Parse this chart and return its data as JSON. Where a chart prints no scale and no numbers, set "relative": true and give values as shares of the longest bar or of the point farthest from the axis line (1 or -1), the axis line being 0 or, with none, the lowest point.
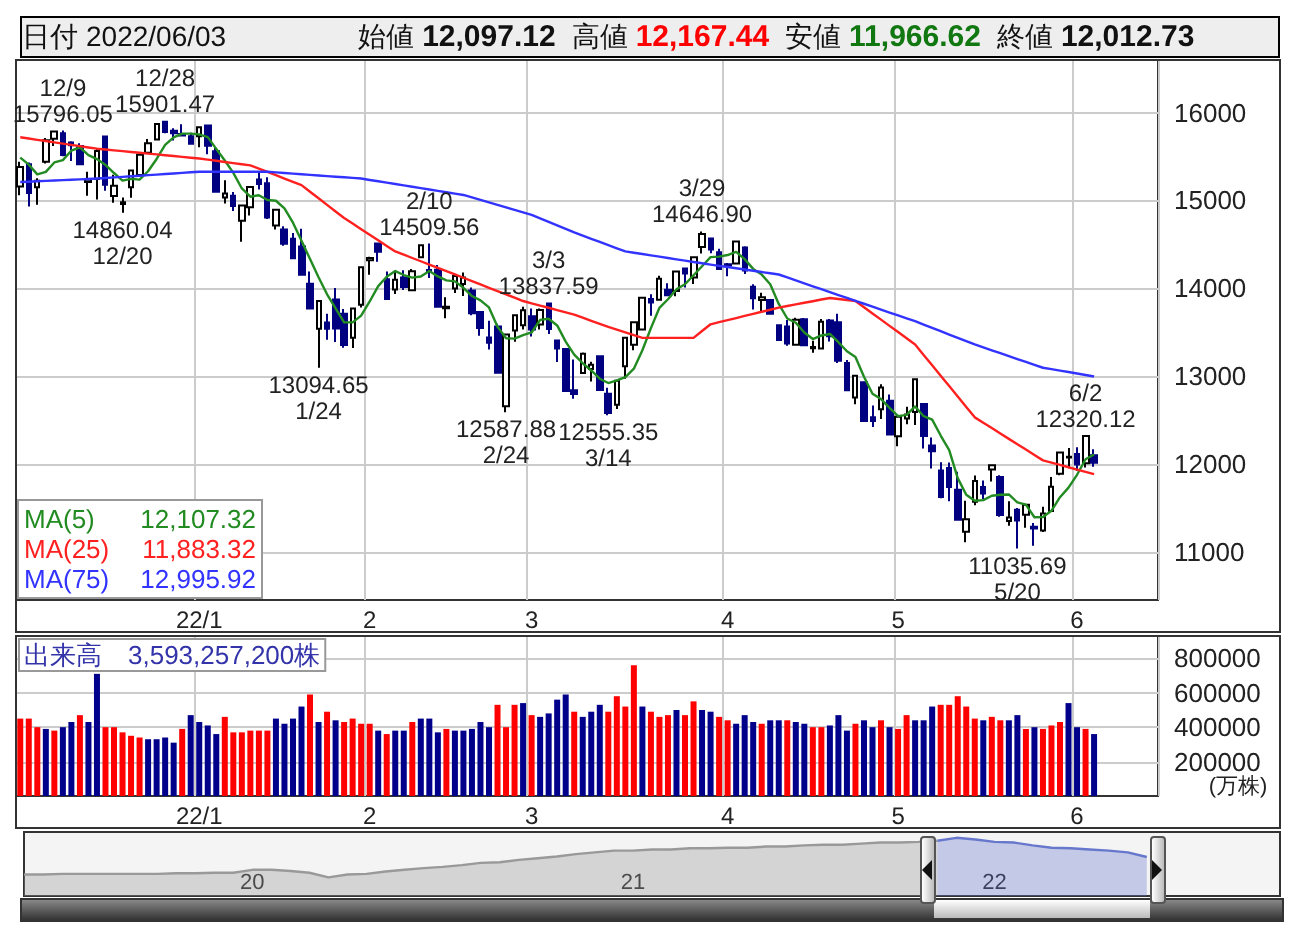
{
  "chart_data": [
    {
      "type": "candlestick",
      "annotations": [
        "日付 2022/06/03",
        "始値 12,097.12",
        "高値 12,167.44",
        "安値 11,966.62",
        "終値 12,012.73",
        "12,107.32",
        "11,883.32",
        "12,995.92"
      ],
      "categories": [
        null,
        null,
        null,
        null,
        null,
        null,
        null,
        null,
        null,
        null,
        null,
        null,
        null,
        null,
        null,
        null,
        null,
        null,
        null,
        null,
        null,
        "22/1",
        null,
        null,
        null,
        null,
        null,
        null,
        null,
        null,
        null,
        null,
        null,
        null,
        null,
        null,
        null,
        null,
        null,
        null,
        null,
        "2",
        null,
        null,
        null,
        null,
        null,
        null,
        null,
        null,
        null,
        null,
        null,
        null,
        null,
        null,
        null,
        null,
        null,
        null,
        "3",
        null,
        null,
        null,
        null,
        null,
        null,
        null,
        null,
        null,
        null,
        null,
        null,
        null,
        null,
        null,
        null,
        null,
        null,
        null,
        null,
        null,
        null,
        "4",
        null,
        null,
        null,
        null,
        null,
        null,
        null,
        null,
        null,
        null,
        null,
        null,
        null,
        null,
        null,
        null,
        null,
        null,
        null,
        "5",
        null,
        null,
        null,
        null,
        null,
        null,
        null,
        null,
        null,
        null,
        null,
        null,
        null,
        null,
        null,
        null,
        null,
        null,
        null,
        null,
        "6",
        null,
        null
      ],
      "ohlc": [
        [
          15160,
          15440,
          15060,
          15381
        ],
        [
          15412,
          15432,
          14932,
          15085
        ],
        [
          15150,
          15252,
          14952,
          15225
        ],
        [
          15440,
          15711,
          15420,
          15686
        ],
        [
          15704,
          15793,
          15620,
          15786
        ],
        [
          15765,
          15796.05,
          15505,
          15517
        ],
        [
          15660,
          15674,
          15450,
          15630
        ],
        [
          15620,
          15652,
          15400,
          15413
        ],
        [
          15210,
          15327,
          15055,
          15237
        ],
        [
          15245,
          15592,
          15010,
          15565
        ],
        [
          15730,
          15730,
          15110,
          15180
        ],
        [
          15050,
          15294,
          14974,
          15169
        ],
        [
          14960,
          15035,
          14860.04,
          14981
        ],
        [
          15150,
          15341,
          15031,
          15341
        ],
        [
          15290,
          15523,
          15286,
          15521
        ],
        [
          15545,
          15700,
          15540,
          15653
        ],
        [
          15696,
          15871,
          15696,
          15871
        ],
        [
          15896,
          15901.47,
          15766,
          15781
        ],
        [
          15794,
          15822,
          15683,
          15766
        ],
        [
          15758,
          15868,
          15738,
          15741
        ],
        [
          15733,
          15771,
          15643,
          15645
        ],
        [
          15732,
          15833,
          15606,
          15833
        ],
        [
          15853,
          15853,
          15528,
          15623
        ],
        [
          15562,
          15607,
          15100,
          15100
        ],
        [
          15033,
          15230,
          14967,
          15081
        ],
        [
          15055,
          15096,
          14881,
          14936
        ],
        [
          14769,
          14943,
          14530,
          14943
        ],
        [
          14924,
          15154,
          14830,
          15153
        ],
        [
          15240,
          15319,
          15125,
          15188
        ],
        [
          15197,
          15264,
          14790,
          14806
        ],
        [
          14714,
          14897,
          14670,
          14894
        ],
        [
          14670,
          14707,
          14484,
          14507
        ],
        [
          14564,
          14629,
          14334,
          14341
        ],
        [
          14476,
          14677,
          14142,
          14155
        ],
        [
          14052,
          14190,
          13768,
          13769
        ],
        [
          13540,
          13862,
          13094.65,
          13856
        ],
        [
          13610,
          13711,
          13414,
          13540
        ],
        [
          13871,
          14002,
          13388,
          13542
        ],
        [
          13710,
          13765,
          13322,
          13353
        ],
        [
          13436,
          13771,
          13319,
          13771
        ],
        [
          13812,
          14242,
          13781,
          14240
        ],
        [
          14320,
          14358,
          14155,
          14346
        ],
        [
          14511,
          14511,
          14303,
          14417
        ],
        [
          14103,
          14192,
          13866,
          13879
        ],
        [
          13986,
          14202,
          13935,
          14098
        ],
        [
          14124,
          14205,
          13980,
          14015
        ],
        [
          13977,
          14221,
          13966,
          14194
        ],
        [
          14354,
          14495,
          14350,
          14490
        ],
        [
          14209,
          14509.56,
          14116,
          14186
        ],
        [
          14211,
          14265,
          13780,
          13791
        ],
        [
          13774,
          13897,
          13659,
          13790
        ],
        [
          13998,
          14140,
          13945,
          14139
        ],
        [
          14049,
          14181,
          13913,
          14124
        ],
        [
          13976,
          14009,
          13694,
          13716
        ],
        [
          13731,
          13741,
          13460,
          13548
        ],
        [
          13441,
          13629,
          13304,
          13381
        ],
        [
          13564,
          13597,
          13030,
          13037
        ],
        [
          12656,
          13483,
          12587.88,
          13473
        ],
        [
          13520,
          13694,
          13391,
          13694
        ],
        [
          13580,
          13790,
          13532,
          13751
        ],
        [
          13681,
          13770,
          13450,
          13532
        ],
        [
          13587,
          13770,
          13532,
          13752
        ],
        [
          13828,
          13837.59,
          13480,
          13537
        ],
        [
          13406,
          13413,
          13160,
          13313
        ],
        [
          13310,
          13319,
          12830,
          12830
        ],
        [
          12838,
          13190,
          12742,
          12795
        ],
        [
          13036,
          13268,
          13026,
          13255
        ],
        [
          13082,
          13164,
          12938,
          13129
        ],
        [
          13225,
          13227,
          12836,
          12843
        ],
        [
          12800,
          12867,
          12555.35,
          12581
        ],
        [
          12673,
          12948,
          12626,
          12948
        ],
        [
          13111,
          13440,
          12970,
          13436
        ],
        [
          13356,
          13614,
          13294,
          13614
        ],
        [
          13532,
          13904,
          13522,
          13893
        ],
        [
          13878,
          13932,
          13686,
          13838
        ],
        [
          13870,
          14143,
          13866,
          14108
        ],
        [
          13984,
          14057,
          13916,
          13922
        ],
        [
          13970,
          14191,
          13908,
          14191
        ],
        [
          14225,
          14233,
          14009,
          14169
        ],
        [
          14122,
          14356,
          14048,
          14354
        ],
        [
          14470,
          14646.9,
          14395,
          14619
        ],
        [
          14566,
          14579,
          14400,
          14442
        ],
        [
          14410,
          14451,
          14214,
          14220
        ],
        [
          14273,
          14288,
          14137,
          14261
        ],
        [
          14283,
          14537,
          14270,
          14532
        ],
        [
          14465,
          14480,
          14163,
          14204
        ],
        [
          14017,
          14045,
          13759,
          13888
        ],
        [
          13867,
          13948,
          13723,
          13897
        ],
        [
          13866,
          13879,
          13704,
          13711
        ],
        [
          13580,
          13581,
          13402,
          13411
        ],
        [
          13564,
          13640,
          13345,
          13371
        ],
        [
          13358,
          13665,
          13353,
          13643
        ],
        [
          13647,
          13662,
          13348,
          13351
        ],
        [
          13316,
          13403,
          13265,
          13332
        ],
        [
          13315,
          13650,
          13304,
          13619
        ],
        [
          13634,
          13650,
          13393,
          13453
        ],
        [
          13612,
          13710,
          13150,
          13174
        ],
        [
          13148,
          13183,
          12839,
          12839
        ],
        [
          12756,
          13005,
          12679,
          13004
        ],
        [
          12929,
          12935,
          12490,
          12490
        ],
        [
          12531,
          12665,
          12420,
          12488
        ],
        [
          12622,
          12908,
          12510,
          12871
        ],
        [
          12720,
          12791,
          12333,
          12335
        ],
        [
          12315,
          12541,
          12202,
          12536
        ],
        [
          12517,
          12650,
          12451,
          12563
        ],
        [
          12592,
          12964,
          12444,
          12964
        ],
        [
          12681,
          12685,
          12176,
          12318
        ],
        [
          12210,
          12300,
          11948,
          12145
        ],
        [
          11924,
          12018,
          11608,
          11623
        ],
        [
          11952,
          12016,
          11574,
          11738
        ],
        [
          11705,
          11911,
          11363,
          11364
        ],
        [
          11226,
          11579,
          11108,
          11371
        ],
        [
          11569,
          11867,
          11530,
          11805
        ],
        [
          11736,
          11810,
          11597,
          11662
        ],
        [
          11936,
          11985,
          11800,
          11984
        ],
        [
          11851,
          11871,
          11397,
          11418
        ],
        [
          11349,
          11576,
          11297,
          11389
        ],
        [
          11477,
          11498,
          11035.69,
          11354
        ],
        [
          11420,
          11539,
          11273,
          11535
        ],
        [
          11285,
          11327,
          11068,
          11264
        ],
        [
          11242,
          11512,
          11225,
          11434
        ],
        [
          11464,
          11850,
          11456,
          11741
        ],
        [
          11888,
          12132,
          11871,
          12131
        ],
        [
          12072,
          12181,
          11950,
          12081
        ],
        [
          12113,
          12189,
          11919,
          11994
        ],
        [
          12007,
          12320.12,
          11960,
          12317
        ],
        [
          12097.12,
          12167.44,
          11966.62,
          12012.73
        ]
      ],
      "value_labels": [
        null,
        null,
        null,
        null,
        null,
        "12/9\n15796.05",
        null,
        null,
        null,
        null,
        null,
        null,
        "14860.04\n12/20",
        null,
        null,
        null,
        null,
        "12/28\n15901.47",
        null,
        null,
        null,
        null,
        null,
        null,
        null,
        null,
        null,
        null,
        null,
        null,
        null,
        null,
        null,
        null,
        null,
        "13094.65\n1/24",
        null,
        null,
        null,
        null,
        null,
        null,
        null,
        null,
        null,
        null,
        null,
        null,
        "2/10\n14509.56",
        null,
        null,
        null,
        null,
        null,
        null,
        null,
        null,
        "12587.88\n2/24",
        null,
        null,
        null,
        null,
        "3/3\n13837.59",
        null,
        null,
        null,
        null,
        null,
        null,
        "12555.35\n3/14",
        null,
        null,
        null,
        null,
        null,
        null,
        null,
        null,
        null,
        null,
        "3/29\n14646.90",
        null,
        null,
        null,
        null,
        null,
        null,
        null,
        null,
        null,
        null,
        null,
        null,
        null,
        null,
        null,
        null,
        null,
        null,
        null,
        null,
        null,
        null,
        null,
        null,
        null,
        null,
        null,
        null,
        null,
        null,
        null,
        null,
        null,
        null,
        null,
        null,
        "11035.69\n5/20",
        null,
        null,
        null,
        null,
        null,
        null,
        null,
        "6/2\n12320.12",
        null
      ],
      "ylim": [
        10450,
        16600
      ],
      "yticks": [
        11000,
        12000,
        13000,
        14000,
        15000,
        16000
      ],
      "grid": true,
      "legend": "bottom left",
      "marker": "none",
      "series": [
        {
          "name": "MA(5)",
          "type": "line",
          "color": "#228b22",
          "values": [
            15489,
            15408,
            15297,
            15326,
            15433,
            15460,
            15569,
            15606,
            15517,
            15472,
            15405,
            15313,
            15226,
            15247,
            15238,
            15333,
            15473,
            15633,
            15718,
            15762,
            15761,
            15753,
            15722,
            15588,
            15456,
            15315,
            15137,
            15043,
            15060,
            15005,
            14997,
            14910,
            14747,
            14541,
            14333,
            14126,
            13932,
            13772,
            13612,
            13612,
            13689,
            13850,
            14025,
            14131,
            14196,
            14151,
            14121,
            14135,
            14197,
            14135,
            14090,
            14079,
            14006,
            13912,
            13863,
            13782,
            13561,
            13431,
            13427,
            13467,
            13497,
            13640,
            13653,
            13577,
            13393,
            13245,
            13146,
            13064,
            12970,
            12921,
            12951,
            12987,
            13084,
            13294,
            13546,
            13778,
            13875,
            13990,
            14046,
            14149,
            14251,
            14355,
            14361,
            14379,
            14415,
            14332,
            14221,
            14156,
            14046,
            13822,
            13656,
            13607,
            13497,
            13422,
            13463,
            13480,
            13386,
            13283,
            13218,
            12992,
            12799,
            12738,
            12638,
            12544,
            12559,
            12654,
            12543,
            12505,
            12323,
            12158,
            11838,
            11648,
            11580,
            11588,
            11637,
            11648,
            11652,
            11561,
            11536,
            11392,
            11395,
            11466,
            11621,
            11730,
            11876,
            12053,
            12107.32
          ]
        },
        {
          "name": "MA(25)",
          "type": "line",
          "color": "#ff2020",
          "values": [
            15720,
            15706,
            15691,
            15677,
            15662,
            15648,
            15633,
            15619,
            15604,
            15590,
            15581,
            15571,
            15562,
            15553,
            15543,
            15534,
            15525,
            15515,
            15506,
            15497,
            15487,
            15478,
            15465,
            15452,
            15439,
            15426,
            15413,
            15400,
            15363,
            15325,
            15288,
            15250,
            15213,
            15175,
            15100,
            15025,
            14950,
            14875,
            14800,
            14737,
            14673,
            14610,
            14547,
            14483,
            14420,
            14383,
            14345,
            14308,
            14270,
            14233,
            14195,
            14158,
            14120,
            14082,
            14044,
            14006,
            13969,
            13931,
            13893,
            13855,
            13829,
            13803,
            13778,
            13752,
            13726,
            13700,
            13665,
            13630,
            13595,
            13560,
            13529,
            13498,
            13466,
            13435,
            13435,
            13435,
            13435,
            13435,
            13435,
            13435,
            13513,
            13590,
            13614,
            13638,
            13661,
            13685,
            13709,
            13733,
            13756,
            13780,
            13798,
            13817,
            13835,
            13853,
            13872,
            13890,
            13878,
            13867,
            13855,
            13784,
            13714,
            13643,
            13572,
            13502,
            13431,
            13360,
            13241,
            13123,
            13004,
            12886,
            12767,
            12649,
            12530,
            12469,
            12408,
            12346,
            12285,
            12224,
            12163,
            12101,
            12040,
            12014,
            11988,
            11962,
            11935,
            11909,
            11883.32
          ]
        },
        {
          "name": "MA(75)",
          "type": "line",
          "color": "#3333ff",
          "values": [
            15210,
            15214,
            15219,
            15223,
            15228,
            15232,
            15236,
            15241,
            15245,
            15250,
            15256,
            15263,
            15269,
            15276,
            15282,
            15289,
            15295,
            15301,
            15308,
            15314,
            15321,
            15327,
            15327,
            15327,
            15327,
            15327,
            15327,
            15327,
            15327,
            15327,
            15320,
            15313,
            15306,
            15299,
            15292,
            15285,
            15278,
            15271,
            15264,
            15257,
            15250,
            15234,
            15219,
            15203,
            15188,
            15172,
            15156,
            15141,
            15125,
            15110,
            15094,
            15078,
            15063,
            15035,
            15006,
            14978,
            14950,
            14921,
            14893,
            14864,
            14836,
            14796,
            14756,
            14716,
            14676,
            14636,
            14600,
            14564,
            14528,
            14492,
            14456,
            14420,
            14405,
            14390,
            14375,
            14360,
            14345,
            14330,
            14315,
            14300,
            14285,
            14270,
            14256,
            14242,
            14228,
            14214,
            14200,
            14185,
            14171,
            14157,
            14124,
            14090,
            14057,
            14023,
            13990,
            13957,
            13923,
            13890,
            13857,
            13824,
            13791,
            13758,
            13724,
            13691,
            13658,
            13625,
            13587,
            13549,
            13511,
            13473,
            13436,
            13398,
            13360,
            13327,
            13294,
            13261,
            13228,
            13194,
            13161,
            13128,
            13095,
            13079,
            13062,
            13046,
            13029,
            13013,
            12995.92
          ]
        }
      ]
    },
    {
      "type": "bar",
      "title": "出来高　3,593,257,200株",
      "ylabel": "(万株)",
      "categories": [
        null,
        null,
        null,
        null,
        null,
        null,
        null,
        null,
        null,
        null,
        null,
        null,
        null,
        null,
        null,
        null,
        null,
        null,
        null,
        null,
        null,
        "22/1",
        null,
        null,
        null,
        null,
        null,
        null,
        null,
        null,
        null,
        null,
        null,
        null,
        null,
        null,
        null,
        null,
        null,
        null,
        null,
        "2",
        null,
        null,
        null,
        null,
        null,
        null,
        null,
        null,
        null,
        null,
        null,
        null,
        null,
        null,
        null,
        null,
        null,
        null,
        "3",
        null,
        null,
        null,
        null,
        null,
        null,
        null,
        null,
        null,
        null,
        null,
        null,
        null,
        null,
        null,
        null,
        null,
        null,
        null,
        null,
        null,
        null,
        "4",
        null,
        null,
        null,
        null,
        null,
        null,
        null,
        null,
        null,
        null,
        null,
        null,
        null,
        null,
        null,
        null,
        null,
        null,
        null,
        "5",
        null,
        null,
        null,
        null,
        null,
        null,
        null,
        null,
        null,
        null,
        null,
        null,
        null,
        null,
        null,
        null,
        null,
        null,
        null,
        null,
        "6",
        null,
        null
      ],
      "values": [
        450000,
        450000,
        400000,
        390000,
        380000,
        400000,
        430000,
        470000,
        430000,
        710000,
        400000,
        400000,
        370000,
        350000,
        340000,
        330000,
        330000,
        340000,
        310000,
        390000,
        470000,
        430000,
        410000,
        360000,
        460000,
        370000,
        370000,
        380000,
        380000,
        380000,
        450000,
        420000,
        450000,
        520000,
        590000,
        430000,
        490000,
        440000,
        430000,
        450000,
        420000,
        420000,
        380000,
        360000,
        380000,
        380000,
        430000,
        450000,
        450000,
        370000,
        390000,
        380000,
        380000,
        390000,
        430000,
        400000,
        530000,
        400000,
        530000,
        540000,
        470000,
        460000,
        480000,
        560000,
        590000,
        490000,
        460000,
        490000,
        530000,
        490000,
        580000,
        520000,
        760000,
        520000,
        490000,
        460000,
        470000,
        500000,
        470000,
        550000,
        500000,
        490000,
        460000,
        440000,
        420000,
        470000,
        430000,
        420000,
        440000,
        440000,
        440000,
        430000,
        420000,
        400000,
        400000,
        410000,
        470000,
        380000,
        420000,
        440000,
        400000,
        440000,
        400000,
        390000,
        470000,
        440000,
        440000,
        520000,
        530000,
        530000,
        580000,
        520000,
        450000,
        440000,
        460000,
        440000,
        440000,
        470000,
        390000,
        400000,
        390000,
        410000,
        430000,
        540000,
        400000,
        390000,
        360000
      ],
      "colors": [
        "#ff0000",
        "#ff0000",
        "#ff0000",
        "#00008b",
        "#ff0000",
        "#00008b",
        "#00008b",
        "#ff0000",
        "#00008b",
        "#00008b",
        "#ff0000",
        "#ff0000",
        "#ff0000",
        "#ff0000",
        "#ff0000",
        "#00008b",
        "#00008b",
        "#00008b",
        "#00008b",
        "#ff0000",
        "#00008b",
        "#00008b",
        "#00008b",
        "#00008b",
        "#ff0000",
        "#ff0000",
        "#ff0000",
        "#ff0000",
        "#ff0000",
        "#ff0000",
        "#00008b",
        "#00008b",
        "#00008b",
        "#00008b",
        "#ff0000",
        "#00008b",
        "#ff0000",
        "#00008b",
        "#ff0000",
        "#ff0000",
        "#ff0000",
        "#ff0000",
        "#00008b",
        "#ff0000",
        "#00008b",
        "#00008b",
        "#ff0000",
        "#00008b",
        "#00008b",
        "#00008b",
        "#ff0000",
        "#00008b",
        "#00008b",
        "#00008b",
        "#00008b",
        "#00008b",
        "#ff0000",
        "#ff0000",
        "#ff0000",
        "#00008b",
        "#ff0000",
        "#00008b",
        "#00008b",
        "#00008b",
        "#00008b",
        "#ff0000",
        "#00008b",
        "#00008b",
        "#00008b",
        "#ff0000",
        "#ff0000",
        "#ff0000",
        "#ff0000",
        "#00008b",
        "#ff0000",
        "#ff0000",
        "#ff0000",
        "#00008b",
        "#ff0000",
        "#ff0000",
        "#00008b",
        "#00008b",
        "#ff0000",
        "#ff0000",
        "#00008b",
        "#00008b",
        "#00008b",
        "#ff0000",
        "#00008b",
        "#00008b",
        "#ff0000",
        "#00008b",
        "#00008b",
        "#ff0000",
        "#ff0000",
        "#00008b",
        "#00008b",
        "#00008b",
        "#ff0000",
        "#00008b",
        "#00008b",
        "#ff0000",
        "#00008b",
        "#ff0000",
        "#ff0000",
        "#00008b",
        "#00008b",
        "#00008b",
        "#ff0000",
        "#ff0000",
        "#ff0000",
        "#ff0000",
        "#ff0000",
        "#00008b",
        "#ff0000",
        "#ff0000",
        "#00008b",
        "#00008b",
        "#ff0000",
        "#00008b",
        "#ff0000",
        "#ff0000",
        "#ff0000",
        "#00008b",
        "#00008b",
        "#ff0000",
        "#00008b"
      ],
      "ylim": [
        0,
        930000
      ],
      "yticks": [
        200000,
        400000,
        600000,
        800000
      ],
      "grid": true
    },
    {
      "type": "area",
      "relative": true,
      "tick_labels": "x",
      "marker": "none",
      "categories": [
        null,
        null,
        null,
        null,
        null,
        null,
        null,
        null,
        null,
        null,
        null,
        null,
        "20",
        null,
        null,
        null,
        null,
        null,
        null,
        null,
        null,
        null,
        null,
        null,
        null,
        null,
        null,
        null,
        null,
        null,
        null,
        null,
        "21",
        null,
        null,
        null,
        null,
        null,
        null,
        null,
        null,
        null,
        null,
        null,
        null,
        null,
        null,
        null,
        null,
        null,
        null,
        "22",
        null,
        null,
        null,
        null,
        null,
        null,
        null,
        null
      ],
      "series": [
        {
          "color": "#999999",
          "values": [
            0.37,
            0.37,
            0.38,
            0.38,
            0.38,
            0.38,
            0.38,
            0.38,
            0.39,
            0.39,
            0.4,
            0.4,
            0.45,
            0.45,
            0.43,
            0.4,
            0.32,
            0.37,
            0.38,
            0.42,
            0.45,
            0.48,
            0.5,
            0.53,
            0.57,
            0.58,
            0.62,
            0.65,
            0.68,
            0.72,
            0.75,
            0.78,
            0.78,
            0.8,
            0.8,
            0.82,
            0.82,
            0.83,
            0.83,
            0.85,
            0.85,
            0.87,
            0.88,
            0.88,
            0.9,
            0.92,
            0.92,
            0.93,
            0.95,
            null,
            null,
            null,
            null,
            null,
            null,
            null,
            null,
            null,
            null,
            null
          ]
        },
        {
          "color": "#6677cc",
          "values": [
            null,
            null,
            null,
            null,
            null,
            null,
            null,
            null,
            null,
            null,
            null,
            null,
            null,
            null,
            null,
            null,
            null,
            null,
            null,
            null,
            null,
            null,
            null,
            null,
            null,
            null,
            null,
            null,
            null,
            null,
            null,
            null,
            null,
            null,
            null,
            null,
            null,
            null,
            null,
            null,
            null,
            null,
            null,
            null,
            null,
            null,
            null,
            null,
            0.95,
            1,
            0.97,
            0.93,
            0.92,
            0.87,
            0.83,
            0.82,
            0.8,
            0.78,
            0.75,
            0.67
          ]
        }
      ]
    }
  ]
}
